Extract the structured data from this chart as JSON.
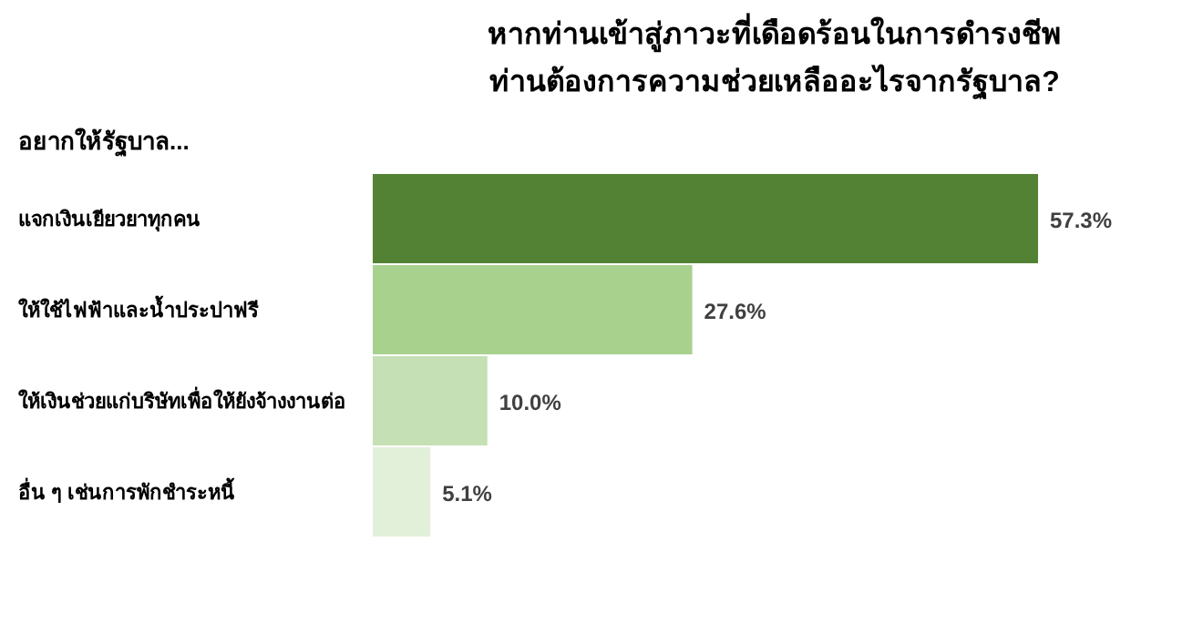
{
  "chart_data": {
    "type": "bar",
    "orientation": "horizontal",
    "title": "หากท่านเข้าสู่ภาวะที่เดือดร้อนในการดำรงชีพ\nท่านต้องการความช่วยเหลืออะไรจากรัฐบาล?",
    "subtitle": "อยากให้รัฐบาล...",
    "categories": [
      "แจกเงินเยียวยาทุกคน",
      "ให้ใช้ไฟฟ้าและน้ำประปาฟรี",
      "ให้เงินช่วยแก่บริษัทเพื่อให้ยังจ้างงานต่อ",
      "อื่น ๆ เช่นการพักชำระหนี้"
    ],
    "values": [
      57.3,
      27.6,
      10.0,
      5.1
    ],
    "value_labels": [
      "57.3%",
      "27.6%",
      "10.0%",
      "5.1%"
    ],
    "colors": [
      "#548235",
      "#a9d18e",
      "#c5e0b4",
      "#e2f0d9"
    ]
  }
}
